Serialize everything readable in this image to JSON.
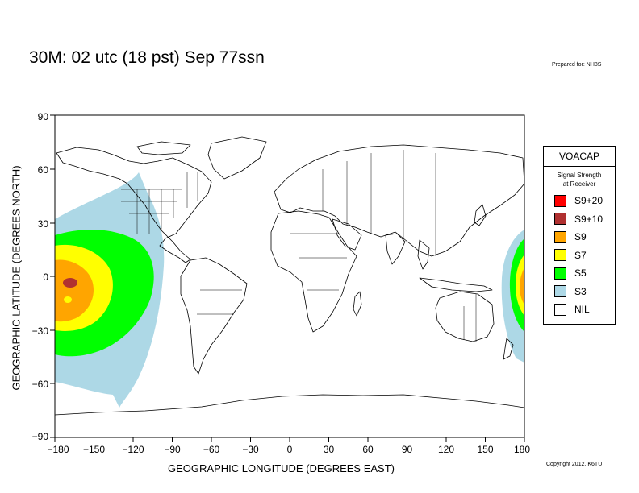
{
  "header": {
    "title": "30M:  02 utc (18 pst) Sep 77ssn",
    "prepared_for": "Prepared for: NH8S"
  },
  "map": {
    "xlabel": "GEOGRAPHIC LONGITUDE (DEGREES EAST)",
    "ylabel": "GEOGRAPHIC LATITUDE (DEGREES NORTH)",
    "x_ticks": [
      "−180",
      "−150",
      "−120",
      "−90",
      "−60",
      "−30",
      "0",
      "30",
      "60",
      "90",
      "120",
      "150",
      "180"
    ],
    "y_ticks": [
      "90",
      "60",
      "30",
      "0",
      "−30",
      "−60",
      "−90"
    ],
    "x_range": [
      -180,
      180
    ],
    "y_range": [
      -90,
      90
    ],
    "land_color": "#ffffff",
    "ocean_color": "#ffffff",
    "border_color": "#000000"
  },
  "legend": {
    "title": "VOACAP",
    "subtitle_line1": "Signal Strength",
    "subtitle_line2": "at Receiver",
    "items": [
      {
        "label": "S9+20",
        "color": "#ff0000"
      },
      {
        "label": "S9+10",
        "color": "#b03030"
      },
      {
        "label": "S9",
        "color": "#ffa500"
      },
      {
        "label": "S7",
        "color": "#ffff00"
      },
      {
        "label": "S5",
        "color": "#00ff00"
      },
      {
        "label": "S3",
        "color": "#add8e6"
      },
      {
        "label": "NIL",
        "color": "#ffffff"
      }
    ]
  },
  "footer": {
    "copyright": "Copyright 2012, K6TU"
  }
}
